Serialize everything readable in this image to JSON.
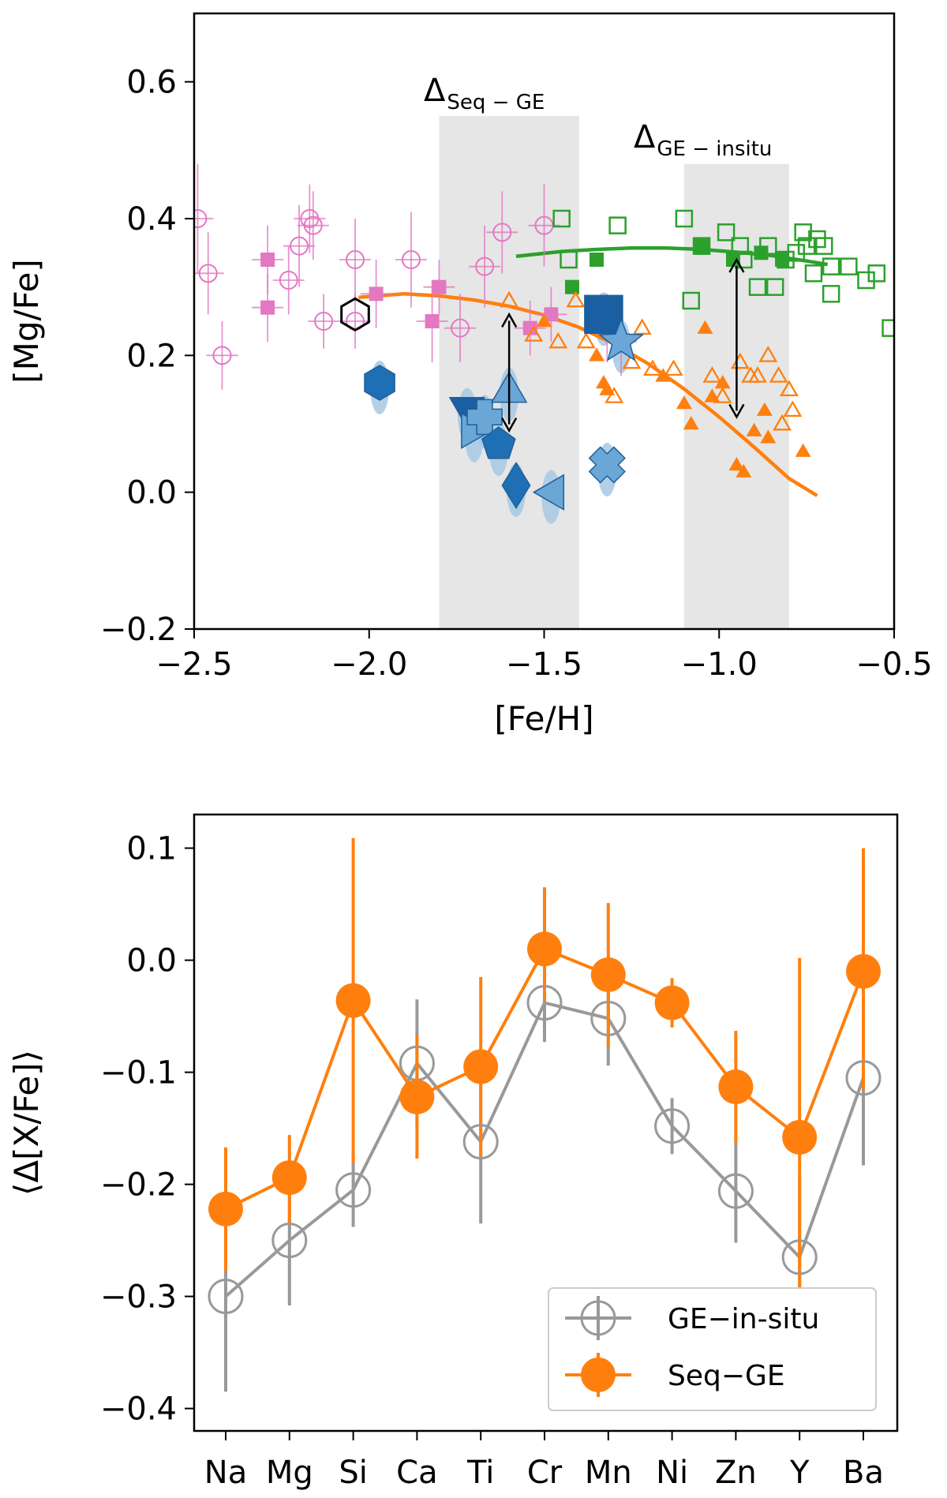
{
  "chart_data": [
    {
      "type": "scatter",
      "xlabel": "[Fe/H]",
      "ylabel": "[Mg/Fe]",
      "xlim": [
        -2.5,
        -0.5
      ],
      "ylim": [
        -0.2,
        0.7
      ],
      "xticks": [
        "−2.5",
        "−2.0",
        "−1.5",
        "−1.0",
        "−0.5"
      ],
      "yticks": [
        "−0.2",
        "0.0",
        "0.2",
        "0.4",
        "0.6"
      ],
      "grid": false,
      "annotations": [
        {
          "main": "Δ",
          "sub": "Seq − GE",
          "x": -1.6,
          "y_range": [
            0.26,
            0.09
          ]
        },
        {
          "main": "Δ",
          "sub": "GE − insitu",
          "x": -0.95,
          "y_range": [
            0.34,
            0.11
          ]
        }
      ],
      "bands": [
        {
          "x0": -1.8,
          "x1": -1.4,
          "y0": -0.2,
          "y1": 0.55
        },
        {
          "x0": -1.1,
          "x1": -0.8,
          "y0": -0.2,
          "y1": 0.48
        }
      ],
      "colors": {
        "pink": "#e377c2",
        "orange": "#ff7f0e",
        "green": "#2ca02c",
        "blue": "#1f77b4",
        "band": "#e6e6e6"
      },
      "series": [
        {
          "marker": "open-circle",
          "color": "#e377c2",
          "points": [
            [
              -2.49,
              0.4
            ],
            [
              -2.46,
              0.32
            ],
            [
              -2.42,
              0.2
            ],
            [
              -2.23,
              0.31
            ],
            [
              -2.2,
              0.36
            ],
            [
              -2.17,
              0.4
            ],
            [
              -2.16,
              0.39
            ],
            [
              -2.13,
              0.25
            ],
            [
              -2.04,
              0.34
            ],
            [
              -2.04,
              0.25
            ],
            [
              -1.88,
              0.34
            ],
            [
              -1.74,
              0.24
            ],
            [
              -1.67,
              0.33
            ],
            [
              -1.62,
              0.38
            ],
            [
              -1.5,
              0.39
            ]
          ],
          "yerr": [
            0.08,
            0.06,
            0.05,
            0.05,
            0.06,
            0.05,
            0.05,
            0.04,
            0.06,
            0.04,
            0.07,
            0.05,
            0.06,
            0.06,
            0.06
          ]
        },
        {
          "marker": "filled-square",
          "color": "#e377c2",
          "points": [
            [
              -2.29,
              0.34
            ],
            [
              -2.29,
              0.27
            ],
            [
              -1.98,
              0.29
            ],
            [
              -1.8,
              0.3
            ],
            [
              -1.82,
              0.25
            ],
            [
              -1.54,
              0.24
            ],
            [
              -1.48,
              0.26
            ],
            [
              -1.32,
              0.24
            ],
            [
              -1.28,
              0.22
            ]
          ],
          "yerr": [
            0.05,
            0.05,
            0.05,
            0.04,
            0.06,
            0.04,
            0.04,
            0.05,
            0.05
          ]
        },
        {
          "marker": "open-square",
          "color": "#2ca02c",
          "points": [
            [
              -1.45,
              0.4
            ],
            [
              -1.43,
              0.34
            ],
            [
              -1.29,
              0.39
            ],
            [
              -1.1,
              0.4
            ],
            [
              -1.08,
              0.28
            ],
            [
              -1.05,
              0.36
            ],
            [
              -0.98,
              0.38
            ],
            [
              -0.94,
              0.36
            ],
            [
              -0.93,
              0.34
            ],
            [
              -0.89,
              0.3
            ],
            [
              -0.86,
              0.36
            ],
            [
              -0.84,
              0.3
            ],
            [
              -0.81,
              0.34
            ],
            [
              -0.78,
              0.35
            ],
            [
              -0.76,
              0.38
            ],
            [
              -0.75,
              0.36
            ],
            [
              -0.73,
              0.32
            ],
            [
              -0.72,
              0.37
            ],
            [
              -0.7,
              0.36
            ],
            [
              -0.68,
              0.33
            ],
            [
              -0.68,
              0.29
            ],
            [
              -0.63,
              0.33
            ],
            [
              -0.58,
              0.31
            ],
            [
              -0.55,
              0.32
            ],
            [
              -0.51,
              0.24
            ]
          ]
        },
        {
          "marker": "filled-square",
          "color": "#2ca02c",
          "points": [
            [
              -1.42,
              0.3
            ],
            [
              -1.35,
              0.34
            ],
            [
              -1.05,
              0.36
            ],
            [
              -0.96,
              0.34
            ],
            [
              -0.88,
              0.35
            ],
            [
              -0.82,
              0.34
            ]
          ]
        },
        {
          "marker": "open-triangle",
          "color": "#ff7f0e",
          "points": [
            [
              -1.6,
              0.28
            ],
            [
              -1.53,
              0.23
            ],
            [
              -1.46,
              0.22
            ],
            [
              -1.41,
              0.28
            ],
            [
              -1.38,
              0.22
            ],
            [
              -1.34,
              0.25
            ],
            [
              -1.3,
              0.14
            ],
            [
              -1.25,
              0.19
            ],
            [
              -1.22,
              0.24
            ],
            [
              -1.19,
              0.18
            ],
            [
              -1.13,
              0.18
            ],
            [
              -1.02,
              0.17
            ],
            [
              -0.99,
              0.14
            ],
            [
              -0.94,
              0.19
            ],
            [
              -0.91,
              0.17
            ],
            [
              -0.89,
              0.17
            ],
            [
              -0.86,
              0.2
            ],
            [
              -0.83,
              0.17
            ],
            [
              -0.82,
              0.1
            ],
            [
              -0.8,
              0.15
            ],
            [
              -0.79,
              0.12
            ]
          ]
        },
        {
          "marker": "filled-triangle",
          "color": "#ff7f0e",
          "points": [
            [
              -1.5,
              0.25
            ],
            [
              -1.35,
              0.2
            ],
            [
              -1.33,
              0.16
            ],
            [
              -1.32,
              0.15
            ],
            [
              -1.16,
              0.17
            ],
            [
              -1.1,
              0.13
            ],
            [
              -1.08,
              0.1
            ],
            [
              -1.04,
              0.24
            ],
            [
              -1.02,
              0.14
            ],
            [
              -0.99,
              0.16
            ],
            [
              -0.95,
              0.04
            ],
            [
              -0.93,
              0.03
            ],
            [
              -0.9,
              0.09
            ],
            [
              -0.86,
              0.08
            ],
            [
              -0.76,
              0.06
            ],
            [
              -0.87,
              0.12
            ]
          ]
        },
        {
          "marker": "mixed",
          "color": "#1f77b4",
          "points": [
            [
              -1.97,
              0.16,
              "hexagon"
            ],
            [
              -1.72,
              0.12,
              "triangle-down"
            ],
            [
              -1.7,
              0.09,
              "triangle-right"
            ],
            [
              -1.67,
              0.11,
              "plus"
            ],
            [
              -1.6,
              0.15,
              "triangle-up"
            ],
            [
              -1.63,
              0.07,
              "pentagon"
            ],
            [
              -1.58,
              0.01,
              "diamond"
            ],
            [
              -1.48,
              0.0,
              "triangle-left"
            ],
            [
              -1.33,
              0.26,
              "square"
            ],
            [
              -1.28,
              0.22,
              "star"
            ],
            [
              -1.32,
              0.04,
              "x"
            ]
          ]
        },
        {
          "marker": "open-hexagon",
          "color": "#000000",
          "points": [
            [
              -2.04,
              0.26
            ]
          ]
        }
      ],
      "lines": [
        {
          "name": "",
          "color": "#ff7f0e",
          "x": [
            -2.03,
            -1.9,
            -1.8,
            -1.7,
            -1.6,
            -1.5,
            -1.4,
            -1.3,
            -1.2,
            -1.1,
            -1.0,
            -0.9,
            -0.8,
            -0.72
          ],
          "y": [
            0.285,
            0.29,
            0.287,
            0.281,
            0.272,
            0.259,
            0.241,
            0.217,
            0.187,
            0.151,
            0.11,
            0.066,
            0.02,
            -0.005
          ]
        },
        {
          "name": "",
          "color": "#2ca02c",
          "x": [
            -1.58,
            -1.45,
            -1.35,
            -1.25,
            -1.15,
            -1.05,
            -0.95,
            -0.85,
            -0.75,
            -0.69
          ],
          "y": [
            0.345,
            0.352,
            0.355,
            0.357,
            0.357,
            0.355,
            0.351,
            0.346,
            0.338,
            0.333
          ]
        }
      ]
    },
    {
      "type": "line",
      "ylabel": "⟨Δ[X/Fe]⟩",
      "categories": [
        "Na",
        "Mg",
        "Si",
        "Ca",
        "Ti",
        "Cr",
        "Mn",
        "Ni",
        "Zn",
        "Y",
        "Ba"
      ],
      "ylim": [
        -0.42,
        0.13
      ],
      "yticks": [
        "−0.4",
        "−0.3",
        "−0.2",
        "−0.1",
        "0.0",
        "0.1"
      ],
      "grid": false,
      "legend_position": "lower-right",
      "series": [
        {
          "name": "GE−in-situ",
          "color": "#999999",
          "marker": "open-circle",
          "values": [
            -0.3,
            -0.25,
            -0.205,
            -0.092,
            -0.162,
            -0.038,
            -0.052,
            -0.148,
            -0.206,
            -0.265,
            -0.105
          ],
          "err_low": [
            0.085,
            0.058,
            0.033,
            0.057,
            0.073,
            0.035,
            0.042,
            0.025,
            0.046,
            0.072,
            0.078
          ],
          "err_high": [
            0.045,
            0.04,
            0.032,
            0.057,
            0.058,
            0.033,
            0.038,
            0.025,
            0.045,
            0.073,
            0.075
          ]
        },
        {
          "name": "Seq−GE",
          "color": "#ff7f0e",
          "marker": "filled-circle",
          "values": [
            -0.222,
            -0.194,
            -0.036,
            -0.122,
            -0.095,
            0.01,
            -0.013,
            -0.038,
            -0.113,
            -0.158,
            -0.01
          ],
          "err_low": [
            0.055,
            0.041,
            0.145,
            0.055,
            0.08,
            0.046,
            0.064,
            0.022,
            0.05,
            0.15,
            0.105
          ],
          "err_high": [
            0.055,
            0.038,
            0.145,
            0.055,
            0.08,
            0.055,
            0.064,
            0.022,
            0.05,
            0.16,
            0.11
          ]
        }
      ]
    }
  ]
}
